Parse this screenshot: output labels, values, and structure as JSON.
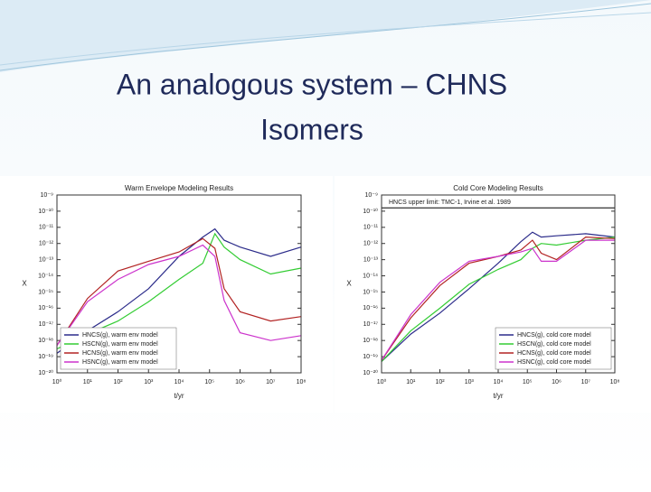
{
  "title": [
    "An analogous system – CHNS",
    "Isomers"
  ],
  "chart_data": [
    {
      "type": "line",
      "title": "Warm Envelope Modeling Results",
      "x_label": "t/yr",
      "y_label": "X",
      "log_x": true,
      "log_y": true,
      "legend": "lower-left",
      "xlim": [
        1,
        100000000
      ],
      "ylim": [
        1e-20,
        1e-09
      ],
      "xticks": [
        {
          "value": 1,
          "label": "10⁰"
        },
        {
          "value": 10,
          "label": "10¹"
        },
        {
          "value": 100,
          "label": "10²"
        },
        {
          "value": 1000,
          "label": "10³"
        },
        {
          "value": 10000,
          "label": "10⁴"
        },
        {
          "value": 100000,
          "label": "10⁵"
        },
        {
          "value": 1000000,
          "label": "10⁶"
        },
        {
          "value": 10000000,
          "label": "10⁷"
        },
        {
          "value": 100000000,
          "label": "10⁸"
        }
      ],
      "yticks": [
        {
          "value": 1e-09,
          "label": "10⁻⁹"
        },
        {
          "value": 1e-10,
          "label": "10⁻¹⁰"
        },
        {
          "value": 1e-11,
          "label": "10⁻¹¹"
        },
        {
          "value": 1e-12,
          "label": "10⁻¹²"
        },
        {
          "value": 1e-13,
          "label": "10⁻¹³"
        },
        {
          "value": 1e-14,
          "label": "10⁻¹⁴"
        },
        {
          "value": 1e-15,
          "label": "10⁻¹⁵"
        },
        {
          "value": 1e-16,
          "label": "10⁻¹⁶"
        },
        {
          "value": 1e-17,
          "label": "10⁻¹⁷"
        },
        {
          "value": 1e-18,
          "label": "10⁻¹⁸"
        },
        {
          "value": 1e-19,
          "label": "10⁻¹⁹"
        },
        {
          "value": 1e-20,
          "label": "10⁻²⁰"
        }
      ],
      "x": [
        1,
        10,
        100,
        1000,
        10000,
        60000,
        150000,
        300000,
        1000000,
        10000000,
        100000000
      ],
      "series": [
        {
          "name": "HNCS(g), warm env model",
          "color": "#2b2b8a",
          "values": [
            1.6e-19,
            4e-18,
            6e-17,
            1.6e-15,
            1.6e-13,
            2.5e-12,
            8e-12,
            1.6e-12,
            6e-13,
            1.6e-13,
            6e-13
          ]
        },
        {
          "name": "HSCN(g), warm env model",
          "color": "#33cc33",
          "values": [
            3e-19,
            2.5e-18,
            1.6e-17,
            2.5e-16,
            6e-15,
            6e-14,
            4e-12,
            6e-13,
            1e-13,
            1.3e-14,
            3e-14
          ]
        },
        {
          "name": "HCNS(g), warm env model",
          "color": "#b22222",
          "values": [
            5e-19,
            4e-16,
            2e-14,
            8e-14,
            3e-13,
            2e-12,
            5e-13,
            1.6e-15,
            6e-17,
            1.6e-17,
            3e-17
          ]
        },
        {
          "name": "HSNC(g), warm env model",
          "color": "#cc33cc",
          "values": [
            5e-19,
            2.5e-16,
            6e-15,
            5e-14,
            1.6e-13,
            8e-13,
            1.6e-13,
            3e-16,
            3e-18,
            1e-18,
            2e-18
          ]
        }
      ]
    },
    {
      "type": "line",
      "title": "Cold Core Modeling Results",
      "x_label": "t/yr",
      "y_label": "X",
      "log_x": true,
      "log_y": true,
      "legend": "lower-right",
      "xlim": [
        1,
        100000000
      ],
      "ylim": [
        1e-20,
        1e-09
      ],
      "xticks": [
        {
          "value": 1,
          "label": "10⁰"
        },
        {
          "value": 10,
          "label": "10¹"
        },
        {
          "value": 100,
          "label": "10²"
        },
        {
          "value": 1000,
          "label": "10³"
        },
        {
          "value": 10000,
          "label": "10⁴"
        },
        {
          "value": 100000,
          "label": "10⁵"
        },
        {
          "value": 1000000,
          "label": "10⁶"
        },
        {
          "value": 10000000,
          "label": "10⁷"
        },
        {
          "value": 100000000,
          "label": "10⁸"
        }
      ],
      "yticks": [
        {
          "value": 1e-09,
          "label": "10⁻⁹"
        },
        {
          "value": 1e-10,
          "label": "10⁻¹⁰"
        },
        {
          "value": 1e-11,
          "label": "10⁻¹¹"
        },
        {
          "value": 1e-12,
          "label": "10⁻¹²"
        },
        {
          "value": 1e-13,
          "label": "10⁻¹³"
        },
        {
          "value": 1e-14,
          "label": "10⁻¹⁴"
        },
        {
          "value": 1e-15,
          "label": "10⁻¹⁵"
        },
        {
          "value": 1e-16,
          "label": "10⁻¹⁶"
        },
        {
          "value": 1e-17,
          "label": "10⁻¹⁷"
        },
        {
          "value": 1e-18,
          "label": "10⁻¹⁸"
        },
        {
          "value": 1e-19,
          "label": "10⁻¹⁹"
        },
        {
          "value": 1e-20,
          "label": "10⁻²⁰"
        }
      ],
      "reference_line": {
        "label": "HNCS upper limit: TMC-1, Irvine et al. 1989",
        "value": 1.6e-10
      },
      "x": [
        1,
        10,
        100,
        1000,
        10000,
        60000,
        150000,
        300000,
        1000000,
        10000000,
        100000000
      ],
      "series": [
        {
          "name": "HNCS(g), cold core model",
          "color": "#2b2b8a",
          "values": [
            5e-20,
            2.5e-18,
            5e-17,
            1.6e-15,
            6e-14,
            1.3e-12,
            5e-12,
            2.5e-12,
            3e-12,
            4e-12,
            2.5e-12
          ]
        },
        {
          "name": "HSCN(g), cold core model",
          "color": "#33cc33",
          "values": [
            5e-20,
            4e-18,
            1e-16,
            3e-15,
            2.5e-14,
            1e-13,
            5e-13,
            1e-12,
            8e-13,
            1.6e-12,
            2.5e-12
          ]
        },
        {
          "name": "HCNS(g), cold core model",
          "color": "#b22222",
          "values": [
            6e-20,
            2.5e-17,
            2.5e-15,
            6e-14,
            1.6e-13,
            4e-13,
            1.6e-12,
            2.5e-13,
            1e-13,
            2.5e-12,
            2e-12
          ]
        },
        {
          "name": "HSNC(g), cold core model",
          "color": "#cc33cc",
          "values": [
            6e-20,
            4e-17,
            4e-15,
            8e-14,
            1.6e-13,
            3e-13,
            5e-13,
            8e-14,
            8e-14,
            1.6e-12,
            1.6e-12
          ]
        }
      ]
    }
  ]
}
